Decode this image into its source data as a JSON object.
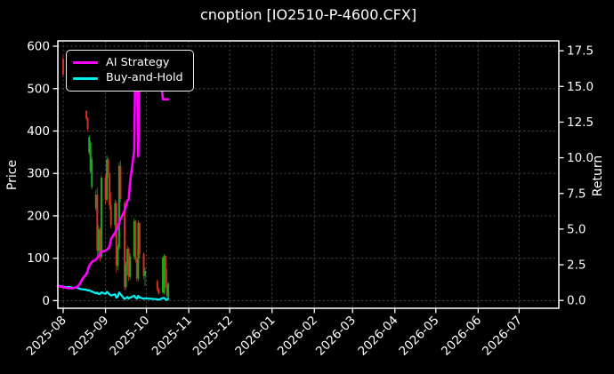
{
  "chart_data": {
    "type": "candlestick+line",
    "title": "cnoption [IO2510-P-4600.CFX]",
    "background_color": "#000000",
    "grid": {
      "on": true,
      "color": "#474747",
      "style": "dashed"
    },
    "x_axis": {
      "tick_labels": [
        "2025-08",
        "2025-09",
        "2025-10",
        "2025-11",
        "2025-12",
        "2026-01",
        "2026-02",
        "2026-03",
        "2026-04",
        "2026-05",
        "2026-06",
        "2026-07"
      ],
      "label_rotation_deg": 45,
      "range": [
        "2025-07-28",
        "2026-07-30"
      ]
    },
    "y_left": {
      "label": "Price",
      "tick_labels": [
        "0",
        "100",
        "200",
        "300",
        "400",
        "500",
        "600"
      ],
      "range": [
        -18,
        613
      ]
    },
    "y_right": {
      "label": "Return",
      "tick_labels": [
        "0.0",
        "2.5",
        "5.0",
        "7.5",
        "10.0",
        "12.5",
        "15.0",
        "17.5"
      ],
      "range": [
        -0.55,
        18.15
      ]
    },
    "legend": {
      "position": "upper-left",
      "items": [
        {
          "label": "AI Strategy",
          "color": "#ff00ff"
        },
        {
          "label": "Buy-and-Hold",
          "color": "#00eeee"
        }
      ]
    },
    "series": [
      {
        "name": "AI Strategy",
        "axis": "right",
        "color": "#ff00ff",
        "line_width": 2.6,
        "points": [
          [
            "2025-07-28",
            1.0
          ],
          [
            "2025-07-29",
            1.02
          ],
          [
            "2025-07-30",
            0.96
          ],
          [
            "2025-07-31",
            0.98
          ],
          [
            "2025-08-01",
            0.92
          ],
          [
            "2025-08-04",
            0.88
          ],
          [
            "2025-08-05",
            0.85
          ],
          [
            "2025-08-06",
            0.87
          ],
          [
            "2025-08-07",
            0.84
          ],
          [
            "2025-08-08",
            0.86
          ],
          [
            "2025-08-11",
            0.92
          ],
          [
            "2025-08-12",
            1.02
          ],
          [
            "2025-08-13",
            1.12
          ],
          [
            "2025-08-14",
            1.28
          ],
          [
            "2025-08-15",
            1.5
          ],
          [
            "2025-08-18",
            1.85
          ],
          [
            "2025-08-19",
            2.1
          ],
          [
            "2025-08-20",
            2.4
          ],
          [
            "2025-08-21",
            2.55
          ],
          [
            "2025-08-22",
            2.7
          ],
          [
            "2025-08-25",
            2.85
          ],
          [
            "2025-08-26",
            3.0
          ],
          [
            "2025-08-27",
            3.1
          ],
          [
            "2025-08-28",
            3.25
          ],
          [
            "2025-08-29",
            3.4
          ],
          [
            "2025-09-01",
            3.5
          ],
          [
            "2025-09-02",
            3.55
          ],
          [
            "2025-09-03",
            3.65
          ],
          [
            "2025-09-04",
            3.8
          ],
          [
            "2025-09-05",
            4.3
          ],
          [
            "2025-09-08",
            4.75
          ],
          [
            "2025-09-09",
            4.9
          ],
          [
            "2025-09-10",
            5.1
          ],
          [
            "2025-09-11",
            5.45
          ],
          [
            "2025-09-12",
            5.7
          ],
          [
            "2025-09-15",
            6.3
          ],
          [
            "2025-09-16",
            6.6
          ],
          [
            "2025-09-17",
            7.0
          ],
          [
            "2025-09-18",
            7.05
          ],
          [
            "2025-09-19",
            8.3
          ],
          [
            "2025-09-22",
            10.5
          ],
          [
            "2025-09-23",
            17.3
          ],
          [
            "2025-09-24",
            17.3
          ],
          [
            "2025-09-25",
            10.1
          ],
          [
            "2025-09-26",
            17.2
          ],
          [
            "2025-09-29",
            17.3
          ],
          [
            "2025-09-30",
            17.3
          ],
          [
            "2025-10-09",
            17.3
          ],
          [
            "2025-10-10",
            17.3
          ],
          [
            "2025-10-13",
            14.1
          ],
          [
            "2025-10-14",
            14.1
          ],
          [
            "2025-10-15",
            14.1
          ],
          [
            "2025-10-16",
            14.1
          ],
          [
            "2025-10-17",
            14.1
          ]
        ]
      },
      {
        "name": "Buy-and-Hold",
        "axis": "right",
        "color": "#00eeee",
        "line_width": 2.3,
        "points": [
          [
            "2025-07-28",
            1.0
          ],
          [
            "2025-07-29",
            1.03
          ],
          [
            "2025-07-30",
            0.98
          ],
          [
            "2025-07-31",
            1.0
          ],
          [
            "2025-08-01",
            0.95
          ],
          [
            "2025-08-04",
            0.92
          ],
          [
            "2025-08-05",
            0.95
          ],
          [
            "2025-08-06",
            0.9
          ],
          [
            "2025-08-07",
            0.92
          ],
          [
            "2025-08-08",
            0.87
          ],
          [
            "2025-08-11",
            0.9
          ],
          [
            "2025-08-12",
            0.85
          ],
          [
            "2025-08-13",
            0.83
          ],
          [
            "2025-08-14",
            0.8
          ],
          [
            "2025-08-15",
            0.78
          ],
          [
            "2025-08-18",
            0.75
          ],
          [
            "2025-08-19",
            0.7
          ],
          [
            "2025-08-20",
            0.72
          ],
          [
            "2025-08-21",
            0.66
          ],
          [
            "2025-08-22",
            0.62
          ],
          [
            "2025-08-25",
            0.5
          ],
          [
            "2025-08-26",
            0.55
          ],
          [
            "2025-08-27",
            0.45
          ],
          [
            "2025-08-28",
            0.47
          ],
          [
            "2025-08-29",
            0.56
          ],
          [
            "2025-09-01",
            0.46
          ],
          [
            "2025-09-02",
            0.6
          ],
          [
            "2025-09-03",
            0.52
          ],
          [
            "2025-09-04",
            0.42
          ],
          [
            "2025-09-05",
            0.35
          ],
          [
            "2025-09-08",
            0.43
          ],
          [
            "2025-09-09",
            0.2
          ],
          [
            "2025-09-10",
            0.27
          ],
          [
            "2025-09-11",
            0.55
          ],
          [
            "2025-09-12",
            0.44
          ],
          [
            "2025-09-15",
            0.1
          ],
          [
            "2025-09-16",
            0.17
          ],
          [
            "2025-09-17",
            0.24
          ],
          [
            "2025-09-18",
            0.13
          ],
          [
            "2025-09-19",
            0.2
          ],
          [
            "2025-09-22",
            0.33
          ],
          [
            "2025-09-23",
            0.2
          ],
          [
            "2025-09-24",
            0.12
          ],
          [
            "2025-09-25",
            0.32
          ],
          [
            "2025-09-26",
            0.21
          ],
          [
            "2025-09-29",
            0.12
          ],
          [
            "2025-09-30",
            0.15
          ],
          [
            "2025-10-09",
            0.08
          ],
          [
            "2025-10-10",
            0.05
          ],
          [
            "2025-10-13",
            0.17
          ],
          [
            "2025-10-14",
            0.18
          ],
          [
            "2025-10-15",
            0.08
          ],
          [
            "2025-10-16",
            0.04
          ],
          [
            "2025-10-17",
            0.12
          ]
        ]
      }
    ],
    "candlesticks": {
      "axis": "left",
      "up_color": "#1fa51f",
      "down_color": "#d03028",
      "columns": [
        "date",
        "open",
        "high",
        "low",
        "close"
      ],
      "data": [
        [
          "2025-08-01",
          570,
          580,
          528,
          533
        ],
        [
          "2025-08-04",
          533,
          548,
          518,
          522
        ],
        [
          "2025-08-05",
          522,
          552,
          515,
          545
        ],
        [
          "2025-08-06",
          545,
          550,
          512,
          518
        ],
        [
          "2025-08-07",
          518,
          540,
          510,
          535
        ],
        [
          "2025-08-08",
          535,
          538,
          505,
          510
        ],
        [
          "2025-08-11",
          510,
          528,
          502,
          524
        ],
        [
          "2025-08-12",
          524,
          526,
          500,
          505
        ],
        [
          "2025-08-13",
          505,
          520,
          498,
          515
        ],
        [
          "2025-08-14",
          515,
          518,
          499,
          503
        ],
        [
          "2025-08-15",
          503,
          512,
          496,
          500
        ],
        [
          "2025-08-18",
          448,
          448,
          425,
          430
        ],
        [
          "2025-08-19",
          430,
          433,
          399,
          404
        ],
        [
          "2025-08-20",
          350,
          390,
          344,
          386
        ],
        [
          "2025-08-21",
          305,
          378,
          300,
          372
        ],
        [
          "2025-08-22",
          268,
          340,
          262,
          333
        ],
        [
          "2025-08-25",
          218,
          262,
          212,
          250
        ],
        [
          "2025-08-26",
          250,
          268,
          105,
          117
        ],
        [
          "2025-08-27",
          117,
          178,
          100,
          168
        ],
        [
          "2025-08-28",
          168,
          172,
          92,
          103
        ],
        [
          "2025-08-29",
          103,
          295,
          98,
          290
        ],
        [
          "2025-09-01",
          290,
          298,
          228,
          238
        ],
        [
          "2025-09-02",
          238,
          342,
          232,
          333
        ],
        [
          "2025-09-03",
          333,
          338,
          290,
          298
        ],
        [
          "2025-09-04",
          298,
          302,
          215,
          225
        ],
        [
          "2025-09-05",
          225,
          255,
          170,
          178
        ],
        [
          "2025-09-08",
          178,
          238,
          150,
          230
        ],
        [
          "2025-09-09",
          230,
          235,
          65,
          82
        ],
        [
          "2025-09-10",
          82,
          132,
          72,
          126
        ],
        [
          "2025-09-11",
          126,
          326,
          120,
          318
        ],
        [
          "2025-09-12",
          318,
          330,
          232,
          240
        ],
        [
          "2025-09-15",
          230,
          236,
          24,
          32
        ],
        [
          "2025-09-16",
          32,
          92,
          26,
          86
        ],
        [
          "2025-09-17",
          86,
          130,
          60,
          122
        ],
        [
          "2025-09-18",
          122,
          126,
          46,
          56
        ],
        [
          "2025-09-19",
          56,
          112,
          50,
          104
        ],
        [
          "2025-09-22",
          104,
          194,
          96,
          188
        ],
        [
          "2025-09-23",
          188,
          190,
          90,
          98
        ],
        [
          "2025-09-24",
          98,
          102,
          44,
          52
        ],
        [
          "2025-09-25",
          52,
          190,
          46,
          183
        ],
        [
          "2025-09-26",
          183,
          186,
          100,
          110
        ],
        [
          "2025-09-29",
          110,
          114,
          50,
          58
        ],
        [
          "2025-09-30",
          58,
          78,
          34,
          70
        ],
        [
          "2025-10-09",
          46,
          50,
          22,
          26
        ],
        [
          "2025-10-10",
          26,
          30,
          14,
          17
        ],
        [
          "2025-10-13",
          20,
          104,
          16,
          100
        ],
        [
          "2025-10-14",
          18,
          110,
          14,
          105
        ],
        [
          "2025-10-15",
          105,
          108,
          30,
          40
        ],
        [
          "2025-10-16",
          40,
          75,
          6,
          12
        ],
        [
          "2025-10-17",
          8,
          44,
          4,
          40
        ]
      ]
    }
  }
}
